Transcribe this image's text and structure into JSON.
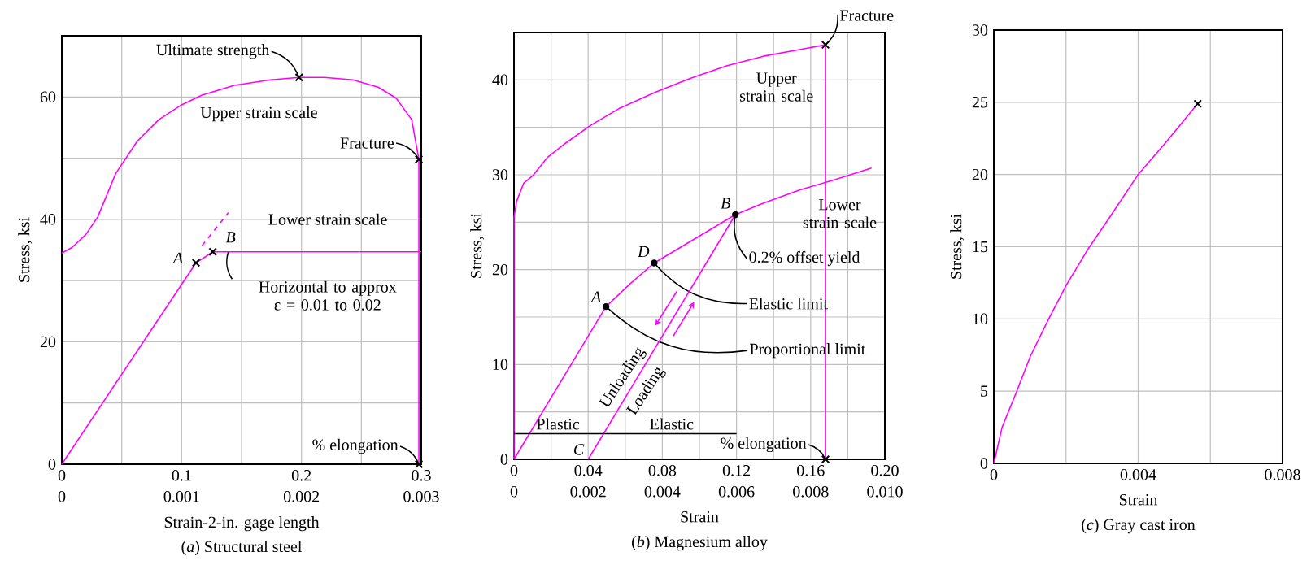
{
  "chart_data": [
    {
      "type": "line",
      "title": "(*a*) Structural steel",
      "xlabel": "Strain-2-in. gage length",
      "ylabel": "Stress, ksi",
      "xlim": [
        0,
        0.3
      ],
      "xticks": [
        0,
        {
          "value": 0.05,
          "label": null
        },
        0.1,
        {
          "value": 0.15,
          "label": null
        },
        0.2,
        {
          "value": 0.25,
          "label": null
        },
        0.3
      ],
      "x2lim": [
        0,
        0.003
      ],
      "x2ticks": [
        0,
        0.001,
        0.002,
        0.003
      ],
      "ylim": [
        0,
        70
      ],
      "yticks": [
        0,
        {
          "value": 10,
          "label": null
        },
        20,
        {
          "value": 30,
          "label": null
        },
        40,
        {
          "value": 50,
          "label": null
        },
        60
      ],
      "grid": true,
      "series": [
        {
          "type": "line",
          "color": "#ff00ff",
          "x": [
            0,
            0.0084,
            0.02,
            0.03,
            0.045,
            0.063,
            0.081,
            0.099,
            0.117,
            0.144,
            0.174,
            0.198,
            0.219,
            0.243,
            0.264,
            0.279,
            0.292,
            0.298,
            0.298
          ],
          "values": [
            34.5,
            35.4,
            37.5,
            40.4,
            47.5,
            52.8,
            56.3,
            58.6,
            60.3,
            61.9,
            62.8,
            63.2,
            63.2,
            62.8,
            61.6,
            59.8,
            56.3,
            49.8,
            0
          ]
        },
        {
          "type": "line",
          "axis": "x2",
          "color": "#ff00ff",
          "x": [
            0,
            0.00112,
            0.00126,
            0.003
          ],
          "values": [
            0,
            32.9,
            34.7,
            34.7
          ]
        },
        {
          "type": "line",
          "axis": "x2",
          "color": "#ff00ff",
          "line_style": "dashed",
          "x": [
            0.00117,
            0.00139
          ],
          "values": [
            35.7,
            41.1
          ]
        },
        {
          "type": "scatter",
          "color": "#000000",
          "marker": "cross",
          "x": [
            0.198,
            0.298,
            0.298
          ],
          "values": [
            63.2,
            49.8,
            0
          ]
        },
        {
          "type": "scatter",
          "axis": "x2",
          "color": "#000000",
          "marker": "cross",
          "x": [
            0.00112,
            0.00126
          ],
          "values": [
            32.9,
            34.7
          ]
        }
      ],
      "annotations": [
        {
          "text": "Ultimate strength",
          "x": 0.198,
          "y": 63.2
        },
        {
          "text": "Upper strain scale",
          "x": 0.174,
          "y": 62.8
        },
        {
          "text": "Fracture",
          "x": 0.298,
          "y": 49.8
        },
        {
          "text": "Lower strain scale",
          "x": 0.222,
          "y": 34.7
        },
        {
          "text": "*A*",
          "x": 0.112,
          "y": 32.9
        },
        {
          "text": "*B*",
          "x": 0.126,
          "y": 34.7
        },
        {
          "text": "Horizontal to approx ε = 0.01 to 0.02",
          "x": 0.139,
          "y": 34.7
        },
        {
          "text": "% elongation",
          "x": 0.298,
          "y": 0
        }
      ]
    },
    {
      "type": "line",
      "title": "(*b*) Magnesium alloy",
      "xlabel": "Strain",
      "ylabel": "Stress, ksi",
      "xlim": [
        0,
        0.2
      ],
      "xticks": [
        0,
        {
          "value": 0.02,
          "label": null
        },
        0.04,
        {
          "value": 0.06,
          "label": null
        },
        0.08,
        {
          "value": 0.1,
          "label": null
        },
        0.12,
        {
          "value": 0.14,
          "label": null
        },
        0.16,
        {
          "value": 0.18,
          "label": null
        },
        {
          "value": 0.2,
          "label": "0.20"
        }
      ],
      "x2lim": [
        0,
        0.01
      ],
      "x2ticks": [
        0,
        0.002,
        0.004,
        0.006,
        0.008,
        {
          "value": 0.01,
          "label": "0.010"
        }
      ],
      "ylim": [
        0,
        45
      ],
      "yticks": [
        0,
        {
          "value": 5,
          "label": null
        },
        10,
        {
          "value": 15,
          "label": null
        },
        20,
        {
          "value": 25,
          "label": null
        },
        30,
        {
          "value": 35,
          "label": null
        },
        40
      ],
      "grid": true,
      "series": [
        {
          "type": "line",
          "color": "#ff00ff",
          "x": [
            0,
            0,
            0.0014,
            0.0052,
            0.0101,
            0.0179,
            0.0276,
            0.0412,
            0.0568,
            0.0762,
            0.0956,
            0.115,
            0.1345,
            0.154,
            0.168,
            0.168
          ],
          "values": [
            0,
            25.5,
            27.2,
            29.1,
            29.9,
            31.8,
            33.3,
            35.2,
            37.0,
            38.7,
            40.2,
            41.5,
            42.5,
            43.2,
            43.7,
            0
          ]
        },
        {
          "type": "line",
          "axis": "x2",
          "color": "#ff00ff",
          "x": [
            0,
            0.00248,
            0.00313,
            0.00378,
            0.00597,
            0.00672,
            0.0077,
            0.00867,
            0.00964
          ],
          "values": [
            0,
            16.1,
            18.5,
            20.7,
            25.8,
            27.0,
            28.4,
            29.5,
            30.7
          ]
        },
        {
          "type": "line",
          "axis": "x2",
          "color": "#ff00ff",
          "x": [
            0.002,
            0.00597
          ],
          "values": [
            0,
            25.8
          ]
        },
        {
          "type": "line",
          "axis": "x2",
          "color": "#000000",
          "x": [
            0,
            0.002,
            0.006
          ],
          "values": [
            2.7,
            2.7,
            2.7
          ]
        },
        {
          "type": "scatter",
          "axis": "x2",
          "color": "#000000",
          "marker": "circle",
          "x": [
            0.00248,
            0.00378,
            0.00597
          ],
          "values": [
            16.1,
            20.7,
            25.8
          ]
        },
        {
          "type": "scatter",
          "color": "#000000",
          "marker": "cross",
          "x": [
            0.168,
            0.168
          ],
          "values": [
            43.7,
            0
          ]
        }
      ],
      "annotations": [
        {
          "text": "Fracture",
          "x": 0.168,
          "y": 43.7
        },
        {
          "text": "Upper strain scale",
          "x": 0.1345,
          "y": 42.5
        },
        {
          "text": "Lower strain scale",
          "x": 0.173,
          "y": 29.5
        },
        {
          "text": "*A*",
          "x": 0.0496,
          "y": 16.1
        },
        {
          "text": "*D*",
          "x": 0.0756,
          "y": 20.7
        },
        {
          "text": "*B*",
          "x": 0.1194,
          "y": 25.8
        },
        {
          "text": "*C*",
          "x": 0.0402,
          "y": 0
        },
        {
          "text": "0.2% offset yield",
          "x": 0.1194,
          "y": 25.8
        },
        {
          "text": "Elastic limit",
          "x": 0.0756,
          "y": 20.7
        },
        {
          "text": "Proportional limit",
          "x": 0.0496,
          "y": 16.1
        },
        {
          "text": "% elongation",
          "x": 0.168,
          "y": 0
        },
        {
          "text": "Plastic",
          "x": 0.0237,
          "y": 2.7
        },
        {
          "text": "Elastic",
          "x": 0.085,
          "y": 2.7
        },
        "Unloading",
        "Loading"
      ]
    },
    {
      "type": "line",
      "title": "(*c*) Gray cast iron",
      "xlabel": "Strain",
      "ylabel": "Stress, ksi",
      "xlim": [
        0,
        0.008
      ],
      "xticks": [
        0,
        {
          "value": 0.002,
          "label": null
        },
        0.004,
        {
          "value": 0.006,
          "label": null
        },
        0.008
      ],
      "ylim": [
        0,
        30
      ],
      "yticks": [
        0,
        5,
        10,
        15,
        20,
        25,
        30
      ],
      "grid": true,
      "series": [
        {
          "type": "line",
          "color": "#ff00ff",
          "x": [
            0,
            0.00023,
            0.00062,
            0.00101,
            0.0015,
            0.002,
            0.0026,
            0.0032,
            0.004,
            0.00476,
            0.00565
          ],
          "values": [
            0,
            2.5,
            4.9,
            7.4,
            9.9,
            12.3,
            14.8,
            17.0,
            20.0,
            22.2,
            24.9
          ]
        },
        {
          "type": "scatter",
          "color": "#000000",
          "marker": "cross",
          "x": [
            0.00565
          ],
          "values": [
            24.9
          ]
        }
      ]
    }
  ]
}
